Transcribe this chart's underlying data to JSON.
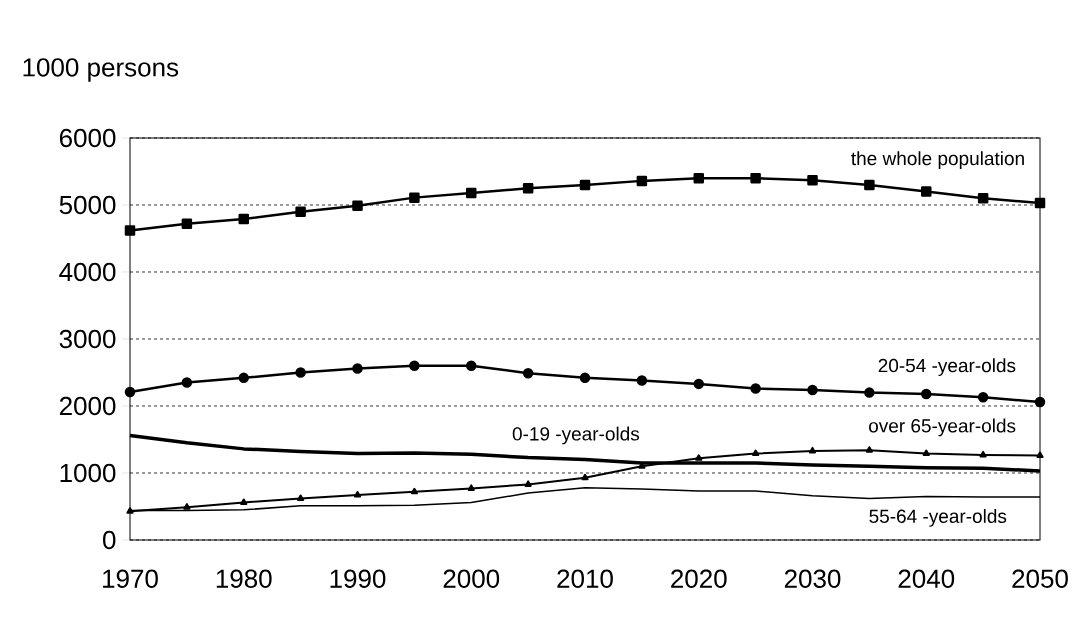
{
  "chart_data": {
    "type": "line",
    "ylabel": "1000 persons",
    "x": [
      1970,
      1975,
      1980,
      1985,
      1990,
      1995,
      2000,
      2005,
      2010,
      2015,
      2020,
      2025,
      2030,
      2035,
      2040,
      2045,
      2050
    ],
    "series": [
      {
        "name": "the whole population",
        "color": "#000000",
        "marker": "square",
        "values": [
          4620,
          4720,
          4790,
          4900,
          4990,
          5110,
          5180,
          5250,
          5300,
          5360,
          5400,
          5400,
          5370,
          5300,
          5200,
          5100,
          5030
        ]
      },
      {
        "name": "20-54 -year-olds",
        "color": "#000000",
        "marker": "circle",
        "values": [
          2210,
          2350,
          2420,
          2500,
          2560,
          2600,
          2600,
          2490,
          2420,
          2380,
          2330,
          2260,
          2240,
          2200,
          2180,
          2130,
          2060
        ]
      },
      {
        "name": "0-19 -year-olds",
        "color": "#000000",
        "marker": "none",
        "values": [
          1560,
          1450,
          1360,
          1320,
          1290,
          1300,
          1280,
          1230,
          1200,
          1150,
          1150,
          1150,
          1120,
          1100,
          1080,
          1070,
          1030
        ]
      },
      {
        "name": "over 65-year-olds",
        "color": "#000000",
        "marker": "triangle",
        "values": [
          430,
          490,
          560,
          620,
          670,
          720,
          770,
          830,
          930,
          1100,
          1220,
          1290,
          1330,
          1340,
          1290,
          1270,
          1260
        ]
      },
      {
        "name": "55-64 -year-olds",
        "color": "#000000",
        "marker": "none",
        "values": [
          440,
          440,
          450,
          510,
          510,
          520,
          560,
          700,
          780,
          760,
          730,
          730,
          660,
          620,
          650,
          640,
          640
        ]
      }
    ],
    "xlim": [
      1970,
      2050
    ],
    "xticks": [
      1970,
      1980,
      1990,
      2000,
      2010,
      2020,
      2030,
      2040,
      2050
    ],
    "ylim": [
      0,
      6000
    ],
    "yticks": [
      0,
      1000,
      2000,
      3000,
      4000,
      5000,
      6000
    ],
    "grid": "y",
    "line_style": "solid"
  }
}
